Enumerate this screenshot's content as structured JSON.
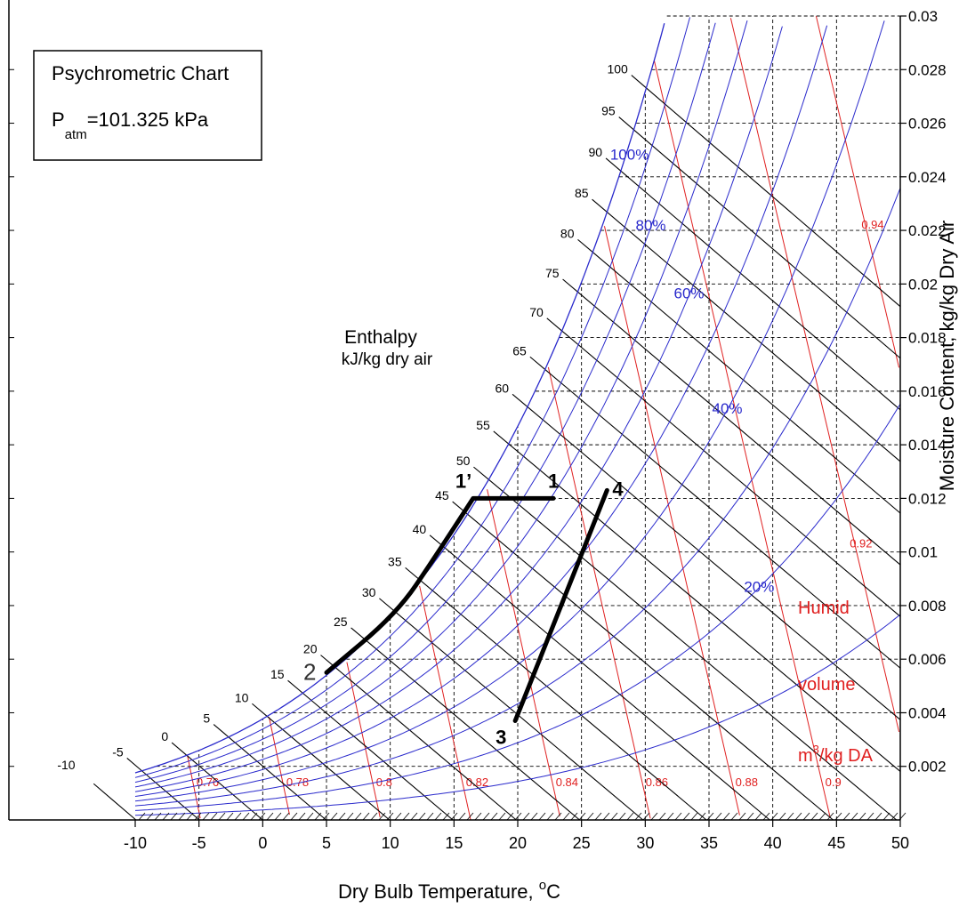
{
  "chart_data": {
    "type": "line",
    "title": "Psychrometric Chart",
    "subtitle": {
      "p": "P",
      "sub": "atm",
      "value": "=101.325 kPa"
    },
    "xlabel": {
      "text": "Dry Bulb Temperature, ",
      "sup": "o",
      "unit": "C"
    },
    "ylabel": "Moisture Content, kg/kg Dry Air",
    "xlim": [
      -15,
      50
    ],
    "ylim": [
      0,
      0.03
    ],
    "x_ticks": [
      "-10",
      "-5",
      "0",
      "5",
      "10",
      "15",
      "20",
      "25",
      "30",
      "35",
      "40",
      "45",
      "50"
    ],
    "y_ticks": [
      "0.002",
      "0.004",
      "0.006",
      "0.008",
      "0.01",
      "0.012",
      "0.014",
      "0.016",
      "0.018",
      "0.02",
      "0.022",
      "0.024",
      "0.026",
      "0.028",
      "0.03"
    ],
    "grid": true,
    "colors": {
      "rh": "#2a2acc",
      "volume": "#e02020",
      "enthalpy": "#000000",
      "grid": "#000000",
      "process": "#000000"
    },
    "enthalpy_label": {
      "line1": "Enthalpy",
      "line2": "kJ/kg dry air"
    },
    "enthalpy_values": [
      -10,
      -5,
      0,
      5,
      10,
      15,
      20,
      25,
      30,
      35,
      40,
      45,
      50,
      55,
      60,
      65,
      70,
      75,
      80,
      85,
      90,
      95,
      100
    ],
    "enthalpy_tick_labels": [
      "-10",
      "-5",
      "0",
      "5",
      "10",
      "15",
      "20",
      "25",
      "30",
      "35",
      "40",
      "45",
      "50",
      "55",
      "60",
      "65",
      "70",
      "75",
      "80",
      "85",
      "90",
      "95",
      "100"
    ],
    "rh_curves": [
      10,
      20,
      30,
      40,
      50,
      60,
      70,
      80,
      90,
      100
    ],
    "rh_labels": [
      {
        "rh": 100,
        "text": "100%"
      },
      {
        "rh": 80,
        "text": "80%"
      },
      {
        "rh": 60,
        "text": "60%"
      },
      {
        "rh": 40,
        "text": "40%"
      },
      {
        "rh": 20,
        "text": "20%"
      }
    ],
    "volume_values": [
      0.76,
      0.78,
      0.8,
      0.82,
      0.84,
      0.86,
      0.88,
      0.9,
      0.92,
      0.94
    ],
    "volume_labels": [
      "0.76",
      "0.78",
      "0.8",
      "0.82",
      "0.84",
      "0.86",
      "0.88",
      "0.9",
      "0.92",
      "0.94"
    ],
    "volume_title": {
      "line1": "Humid",
      "line2": "volume",
      "pre": "m",
      "sup": "3",
      "post": "/kg DA"
    },
    "process_points": [
      {
        "label": "1",
        "t": 22.8,
        "w": 0.012
      },
      {
        "label": "1’",
        "t": 16.5,
        "w": 0.012
      },
      {
        "label": "2",
        "t": 5.0,
        "w": 0.0055
      },
      {
        "label": "3",
        "t": 19.8,
        "w": 0.0037
      },
      {
        "label": "4",
        "t": 27.0,
        "w": 0.0123
      }
    ],
    "process_paths": [
      {
        "name": "cooling-dehumidification",
        "points": [
          [
            22.8,
            0.012
          ],
          [
            16.5,
            0.012
          ],
          [
            13.5,
            0.0098
          ],
          [
            10.5,
            0.0077
          ],
          [
            5.0,
            0.0055
          ]
        ]
      },
      {
        "name": "heating-humidification",
        "points": [
          [
            19.8,
            0.0037
          ],
          [
            27.0,
            0.0123
          ]
        ]
      }
    ]
  }
}
